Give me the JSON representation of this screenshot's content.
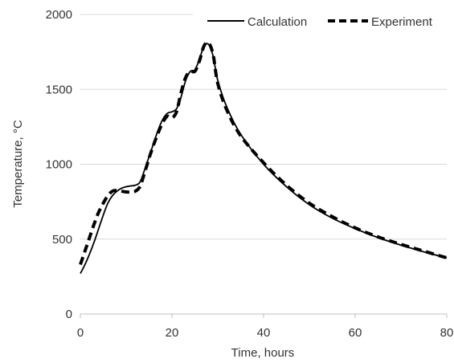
{
  "chart_data": {
    "type": "line",
    "title": "",
    "xlabel": "Time, hours",
    "ylabel": "Temperature, °C",
    "xlim": [
      0,
      80
    ],
    "ylim": [
      0,
      2000
    ],
    "x_ticks": [
      0,
      20,
      40,
      60,
      80
    ],
    "y_ticks": [
      0,
      500,
      1000,
      1500,
      2000
    ],
    "grid": "horizontal",
    "legend_position": "top",
    "colors": {
      "series": "#000000",
      "grid": "#d9d9d9",
      "axis": "#bfbfbf",
      "text": "#333333"
    },
    "series": [
      {
        "name": "Calculation",
        "style": "solid",
        "x": [
          0,
          1,
          2,
          3,
          4,
          5,
          6,
          7,
          8,
          9,
          10,
          11,
          12,
          13,
          14,
          15,
          16,
          17,
          18,
          19,
          20,
          21,
          22,
          23,
          24,
          25,
          26,
          27,
          28,
          29,
          30,
          32,
          35,
          40,
          45,
          50,
          55,
          60,
          65,
          70,
          75,
          80
        ],
        "y": [
          270,
          330,
          400,
          480,
          570,
          660,
          740,
          790,
          820,
          840,
          850,
          855,
          860,
          880,
          960,
          1050,
          1140,
          1230,
          1300,
          1340,
          1350,
          1370,
          1450,
          1560,
          1620,
          1630,
          1700,
          1790,
          1800,
          1720,
          1560,
          1380,
          1200,
          1000,
          850,
          730,
          640,
          570,
          510,
          460,
          415,
          375
        ]
      },
      {
        "name": "Experiment",
        "style": "dashed",
        "x": [
          0,
          1,
          2,
          3,
          4,
          5,
          6,
          7,
          8,
          9,
          10,
          11,
          12,
          13,
          14,
          15,
          16,
          17,
          18,
          19,
          20,
          21,
          22,
          23,
          24,
          25,
          26,
          27,
          28,
          29,
          30,
          32,
          35,
          40,
          45,
          50,
          55,
          60,
          65,
          70,
          75,
          80
        ],
        "y": [
          330,
          420,
          510,
          600,
          680,
          740,
          790,
          820,
          825,
          820,
          815,
          815,
          820,
          850,
          940,
          1040,
          1130,
          1210,
          1280,
          1320,
          1310,
          1350,
          1480,
          1580,
          1620,
          1620,
          1690,
          1790,
          1810,
          1730,
          1540,
          1360,
          1190,
          1010,
          860,
          740,
          650,
          575,
          515,
          465,
          420,
          375
        ]
      }
    ]
  }
}
